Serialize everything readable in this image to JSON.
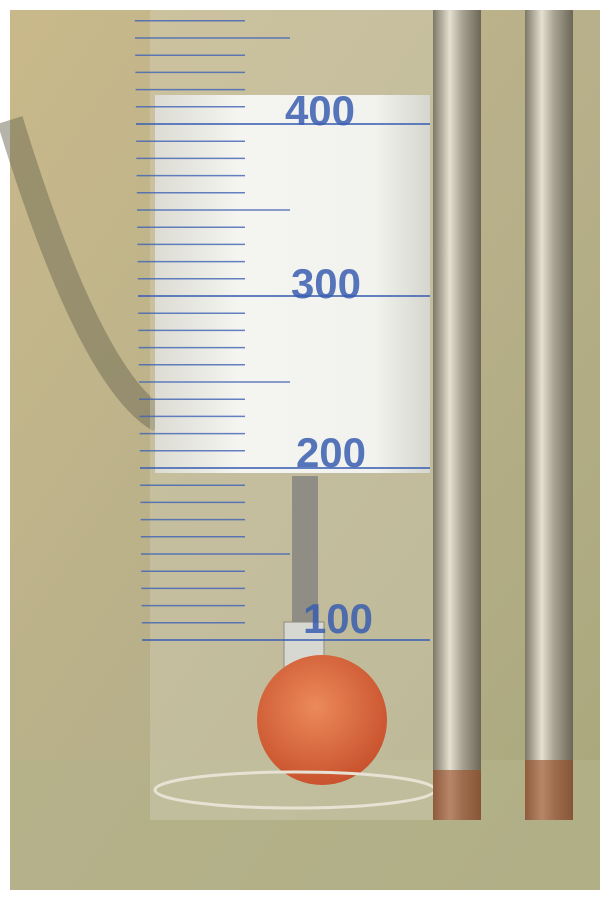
{
  "scale": {
    "labels": [
      "400",
      "300",
      "200",
      "100"
    ]
  }
}
